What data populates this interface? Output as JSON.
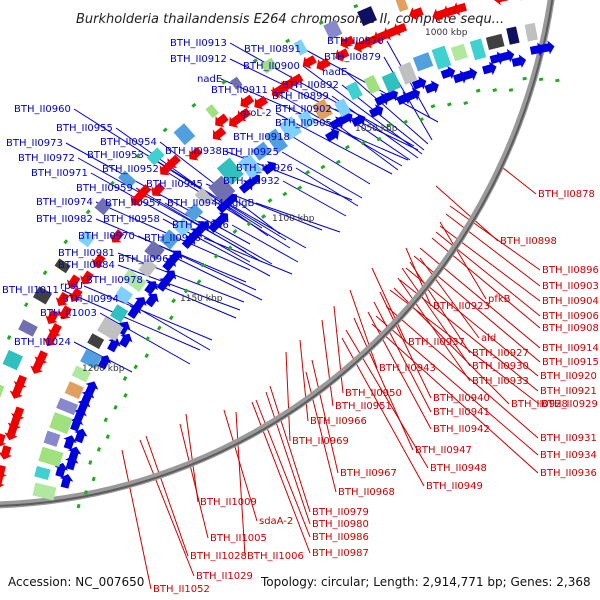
{
  "title": "Burkholderia thailandensis E264 chromosome II, complete sequ...",
  "footer": {
    "accession": "Accession: NC_007650",
    "topology": "Topology: circular; Length: 2,914,771 bp; Genes: 2,368"
  },
  "kbp_marks": [
    "1000 kbp",
    "1050 kbp",
    "1100 kbp",
    "1150 kbp",
    "1200 kbp"
  ],
  "colors": {
    "forward_strand": "#0000dd",
    "reverse_strand": "#ee0000",
    "backbone": "#888888",
    "forward_label": "#0000cc",
    "reverse_label": "#cc0000"
  },
  "forward_labels": [
    "BTH_II0870",
    "BTH_II0891",
    "BTH_II0913",
    "BTH_II0912",
    "BTH_II0900",
    "BTH_II0879",
    "nadE",
    "nadE",
    "BTH_II0892",
    "BTH_II0911",
    "BTH_II0899",
    "groL-2",
    "BTH_II0902",
    "BTH_II0905",
    "BTH_II0960",
    "BTH_II0955",
    "BTH_II0973",
    "BTH_II0954",
    "BTH_II0918",
    "BTH_II0972",
    "BTH_II0953",
    "BTH_II0938",
    "BTH_II0925",
    "BTH_II0971",
    "BTH_II0952",
    "BTH_II0926",
    "BTH_II0945",
    "BTH_II0932",
    "BTH_II0959",
    "BTH_II0974",
    "BTH_II0957",
    "BTH_II0944",
    "glgB",
    "BTH_II0982",
    "BTH_II0958",
    "BTH_II0946",
    "BTH_II0970",
    "BTH_II0956",
    "BTH_II0981",
    "BTH_II0984",
    "BTH_II0965",
    "BTH_II0978",
    "BTH_II1011",
    "rpsU",
    "BTH_II0994",
    "BTH_II1003",
    "BTH_II1024"
  ],
  "reverse_labels": [
    "BTH_II0878",
    "BTH_II0898",
    "BTH_II0896",
    "BTH_II0903",
    "pfkB",
    "BTH_II0904",
    "BTH_II0923",
    "BTH_II0906",
    "BTH_II0908",
    "ald",
    "BTH_II0937",
    "BTH_II0914",
    "BTH_II0927",
    "BTH_II0915",
    "BTH_II0943",
    "BTH_II0930",
    "BTH_II0920",
    "BTH_II0933",
    "BTH_II0921",
    "BTH_II0950",
    "BTH_II0940",
    "BTH_II0928",
    "BTH_II0951",
    "BTH_II0929",
    "BTH_II0941",
    "BTH_II0966",
    "BTH_II0931",
    "BTH_II0942",
    "BTH_II0969",
    "BTH_II0947",
    "BTH_II0934",
    "BTH_II0948",
    "BTH_II0936",
    "BTH_II0967",
    "BTH_II0949",
    "BTH_II0968",
    "BTH_II0979",
    "BTH_II1009",
    "BTH_II0980",
    "sdaA-2",
    "BTH_II0986",
    "BTH_II1005",
    "BTH_II1006",
    "BTH_II0987",
    "BTH_II1028",
    "BTH_II1029",
    "BTH_II1052"
  ]
}
